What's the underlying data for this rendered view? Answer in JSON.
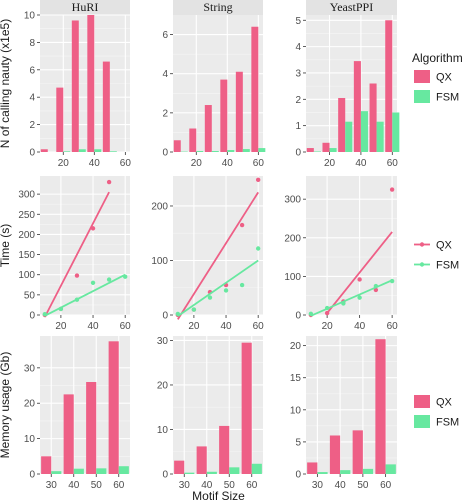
{
  "colors": {
    "qx": "#ee5f86",
    "fsm": "#67e8a0",
    "panel_bg": "#ebebeb",
    "strip": "#e3e3e3"
  },
  "chart_data": [
    {
      "type": "bar",
      "row": 0,
      "ylabel": "N of calling nauty (x1e5)",
      "series_names": [
        "QX",
        "FSM"
      ],
      "panels": [
        {
          "title": "HuRI",
          "xlim": [
            5,
            63
          ],
          "ylim": [
            0,
            10
          ],
          "xticks": [
            20,
            40,
            60
          ],
          "yticks": [
            0,
            2,
            4,
            6,
            8,
            10
          ],
          "x": [
            10,
            20,
            30,
            40,
            50,
            60
          ],
          "series": [
            {
              "name": "QX",
              "values": [
                0.2,
                4.7,
                9.6,
                10.0,
                6.6,
                0.0
              ]
            },
            {
              "name": "FSM",
              "values": [
                0.0,
                0.05,
                0.2,
                0.2,
                0.05,
                0.0
              ]
            }
          ]
        },
        {
          "title": "String",
          "xlim": [
            5,
            63
          ],
          "ylim": [
            0,
            7
          ],
          "xticks": [
            20,
            40,
            60
          ],
          "yticks": [
            0,
            2,
            4,
            6
          ],
          "x": [
            10,
            20,
            30,
            40,
            50,
            60
          ],
          "series": [
            {
              "name": "QX",
              "values": [
                0.6,
                1.2,
                2.4,
                3.7,
                4.1,
                6.4
              ]
            },
            {
              "name": "FSM",
              "values": [
                0.02,
                0.05,
                0.05,
                0.1,
                0.15,
                0.2
              ]
            }
          ]
        },
        {
          "title": "YeastPPI",
          "xlim": [
            5,
            63
          ],
          "ylim": [
            0,
            5.2
          ],
          "xticks": [
            20,
            40,
            60
          ],
          "yticks": [
            0,
            1,
            2,
            3,
            4,
            5
          ],
          "x": [
            10,
            20,
            30,
            40,
            50,
            60
          ],
          "series": [
            {
              "name": "QX",
              "values": [
                0.15,
                0.35,
                2.05,
                3.45,
                2.6,
                5.0
              ]
            },
            {
              "name": "FSM",
              "values": [
                0.02,
                0.15,
                1.15,
                1.55,
                1.15,
                1.5
              ]
            }
          ]
        }
      ],
      "legend": {
        "title": "Algorithm",
        "position": "right",
        "entries": [
          "QX",
          "FSM"
        ]
      }
    },
    {
      "type": "scatter",
      "row": 1,
      "ylabel": "Time (s)",
      "series_names": [
        "QX",
        "FSM"
      ],
      "panels": [
        {
          "xlim": [
            7,
            63
          ],
          "ylim": [
            0,
            345
          ],
          "xticks": [
            20,
            40,
            60
          ],
          "yticks": [
            0,
            50,
            100,
            150,
            200,
            250,
            300
          ],
          "series": [
            {
              "name": "QX",
              "points": [
                [
                  10,
                  0
                ],
                [
                  20,
                  15
                ],
                [
                  30,
                  98
                ],
                [
                  40,
                  215
                ],
                [
                  50,
                  330
                ]
              ],
              "fit": [
                [
                  10,
                  -5
                ],
                [
                  50,
                  305
                ]
              ]
            },
            {
              "name": "FSM",
              "points": [
                [
                  10,
                  2
                ],
                [
                  20,
                  15
                ],
                [
                  30,
                  38
                ],
                [
                  40,
                  80
                ],
                [
                  50,
                  88
                ],
                [
                  60,
                  95
                ]
              ],
              "fit": [
                [
                  10,
                  -2
                ],
                [
                  60,
                  100
                ]
              ]
            }
          ]
        },
        {
          "xlim": [
            7,
            63
          ],
          "ylim": [
            0,
            255
          ],
          "xticks": [
            20,
            40,
            60
          ],
          "yticks": [
            0,
            100,
            200
          ],
          "series": [
            {
              "name": "QX",
              "points": [
                [
                  10,
                  0
                ],
                [
                  20,
                  10
                ],
                [
                  30,
                  42
                ],
                [
                  40,
                  55
                ],
                [
                  50,
                  165
                ],
                [
                  60,
                  248
                ]
              ],
              "fit": [
                [
                  10,
                  -8
                ],
                [
                  60,
                  225
                ]
              ]
            },
            {
              "name": "FSM",
              "points": [
                [
                  10,
                  2
                ],
                [
                  20,
                  10
                ],
                [
                  30,
                  32
                ],
                [
                  40,
                  45
                ],
                [
                  50,
                  55
                ],
                [
                  60,
                  122
                ]
              ],
              "fit": [
                [
                  10,
                  -2
                ],
                [
                  60,
                  100
                ]
              ]
            }
          ]
        },
        {
          "xlim": [
            7,
            63
          ],
          "ylim": [
            0,
            360
          ],
          "xticks": [
            20,
            40,
            60
          ],
          "yticks": [
            0,
            100,
            200,
            300
          ],
          "series": [
            {
              "name": "QX",
              "points": [
                [
                  10,
                  0
                ],
                [
                  20,
                  5
                ],
                [
                  30,
                  35
                ],
                [
                  40,
                  92
                ],
                [
                  50,
                  65
                ],
                [
                  60,
                  325
                ]
              ],
              "fit": [
                [
                  20,
                  5
                ],
                [
                  60,
                  215
                ]
              ]
            },
            {
              "name": "FSM",
              "points": [
                [
                  10,
                  3
                ],
                [
                  20,
                  18
                ],
                [
                  30,
                  30
                ],
                [
                  40,
                  45
                ],
                [
                  50,
                  75
                ],
                [
                  60,
                  88
                ]
              ],
              "fit": [
                [
                  10,
                  -2
                ],
                [
                  60,
                  90
                ]
              ]
            }
          ]
        }
      ],
      "legend": {
        "position": "right",
        "entries": [
          "QX",
          "FSM"
        ]
      }
    },
    {
      "type": "bar",
      "row": 2,
      "ylabel": "Memory usage (Gb)",
      "xlabel": "Motif Size",
      "series_names": [
        "QX",
        "FSM"
      ],
      "panels": [
        {
          "xlim": [
            25,
            65
          ],
          "ylim": [
            0,
            39
          ],
          "xticks": [
            30,
            40,
            50,
            60
          ],
          "yticks": [
            0,
            10,
            20,
            30
          ],
          "x": [
            30,
            40,
            50,
            60
          ],
          "series": [
            {
              "name": "QX",
              "values": [
                5.0,
                22.5,
                26.0,
                37.5
              ]
            },
            {
              "name": "FSM",
              "values": [
                0.8,
                1.5,
                1.6,
                2.2
              ]
            }
          ]
        },
        {
          "xlim": [
            25,
            65
          ],
          "ylim": [
            0,
            31
          ],
          "xticks": [
            30,
            40,
            50,
            60
          ],
          "yticks": [
            0,
            10,
            20,
            30
          ],
          "x": [
            30,
            40,
            50,
            60
          ],
          "series": [
            {
              "name": "QX",
              "values": [
                3.0,
                6.2,
                10.8,
                29.5
              ]
            },
            {
              "name": "FSM",
              "values": [
                0.3,
                0.5,
                1.5,
                2.3
              ]
            }
          ]
        },
        {
          "xlim": [
            25,
            65
          ],
          "ylim": [
            0,
            21.5
          ],
          "xticks": [
            30,
            40,
            50,
            60
          ],
          "yticks": [
            0,
            5,
            10,
            15,
            20
          ],
          "x": [
            30,
            40,
            50,
            60
          ],
          "series": [
            {
              "name": "QX",
              "values": [
                1.8,
                6.0,
                6.8,
                21.0
              ]
            },
            {
              "name": "FSM",
              "values": [
                0.3,
                0.6,
                0.8,
                1.5
              ]
            }
          ]
        }
      ],
      "legend": {
        "position": "right",
        "entries": [
          "QX",
          "FSM"
        ]
      }
    }
  ]
}
